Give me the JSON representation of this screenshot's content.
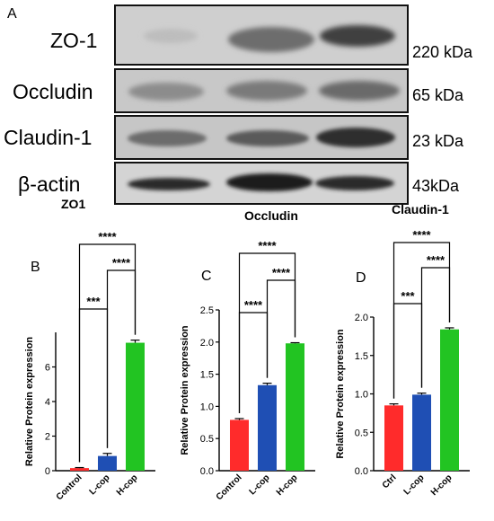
{
  "figure": {
    "panel_a_letter": "A",
    "blots": [
      {
        "protein": "ZO-1",
        "mw": "220 kDa"
      },
      {
        "protein": "Occludin",
        "mw": "65 kDa"
      },
      {
        "protein": "Claudin-1",
        "mw": "23 kDa"
      },
      {
        "protein": "β-actin",
        "mw": "43kDa"
      }
    ]
  },
  "chart_data": [
    {
      "panel": "B",
      "type": "bar",
      "title": "ZO1",
      "ylabel": "Relative Protein expression",
      "categories": [
        "Control",
        "L-cop",
        "H-cop"
      ],
      "values": [
        0.15,
        0.85,
        7.4
      ],
      "errors": [
        0.03,
        0.15,
        0.15
      ],
      "colors": [
        "#ff2b2b",
        "#1f4fb4",
        "#22c422"
      ],
      "ylim": [
        0,
        8
      ],
      "yticks": [
        "0",
        "2",
        "4",
        "6"
      ],
      "significance": [
        {
          "from": 0,
          "to": 2,
          "label": "****"
        },
        {
          "from": 1,
          "to": 2,
          "label": "****"
        },
        {
          "from": 0,
          "to": 1,
          "label": "***"
        }
      ]
    },
    {
      "panel": "C",
      "type": "bar",
      "title": "Occludin",
      "ylabel": "Relative Protein expression",
      "categories": [
        "Control",
        "L-cop",
        "H-cop"
      ],
      "values": [
        0.79,
        1.33,
        1.98
      ],
      "errors": [
        0.02,
        0.03,
        0.01
      ],
      "colors": [
        "#ff2b2b",
        "#1f4fb4",
        "#22c422"
      ],
      "ylim": [
        0,
        2.5
      ],
      "yticks": [
        "0.0",
        "0.5",
        "1.0",
        "1.5",
        "2.0",
        "2.5"
      ],
      "significance": [
        {
          "from": 0,
          "to": 2,
          "label": "****"
        },
        {
          "from": 1,
          "to": 2,
          "label": "****"
        },
        {
          "from": 0,
          "to": 1,
          "label": "****"
        }
      ]
    },
    {
      "panel": "D",
      "type": "bar",
      "title": "Claudin-1",
      "ylabel": "Relative Protein expression",
      "categories": [
        "Ctrl",
        "L-cop",
        "H-cop"
      ],
      "values": [
        0.85,
        0.99,
        1.84
      ],
      "errors": [
        0.02,
        0.02,
        0.02
      ],
      "colors": [
        "#ff2b2b",
        "#1f4fb4",
        "#22c422"
      ],
      "ylim": [
        0,
        2.0
      ],
      "yticks": [
        "0.0",
        "0.5",
        "1.0",
        "1.5",
        "2.0"
      ],
      "significance": [
        {
          "from": 0,
          "to": 2,
          "label": "****"
        },
        {
          "from": 1,
          "to": 2,
          "label": "****"
        },
        {
          "from": 0,
          "to": 1,
          "label": "***"
        }
      ]
    }
  ]
}
